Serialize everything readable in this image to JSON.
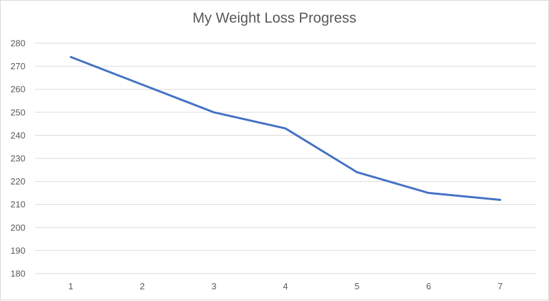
{
  "chart_data": {
    "type": "line",
    "title": "My Weight Loss Progress",
    "xlabel": "",
    "ylabel": "",
    "x": [
      1,
      2,
      3,
      4,
      5,
      6,
      7
    ],
    "series": [
      {
        "values": [
          274,
          262,
          250,
          243,
          224,
          215,
          212
        ]
      }
    ],
    "ylim": [
      180,
      280
    ],
    "yticks": [
      180,
      190,
      200,
      210,
      220,
      230,
      240,
      250,
      260,
      270,
      280
    ],
    "xticks": [
      1,
      2,
      3,
      4,
      5,
      6,
      7
    ],
    "grid": "horizontal",
    "legend": "none",
    "colors": {
      "line": "#4472c4",
      "grid": "#d9d9d9",
      "text": "#595959"
    }
  }
}
